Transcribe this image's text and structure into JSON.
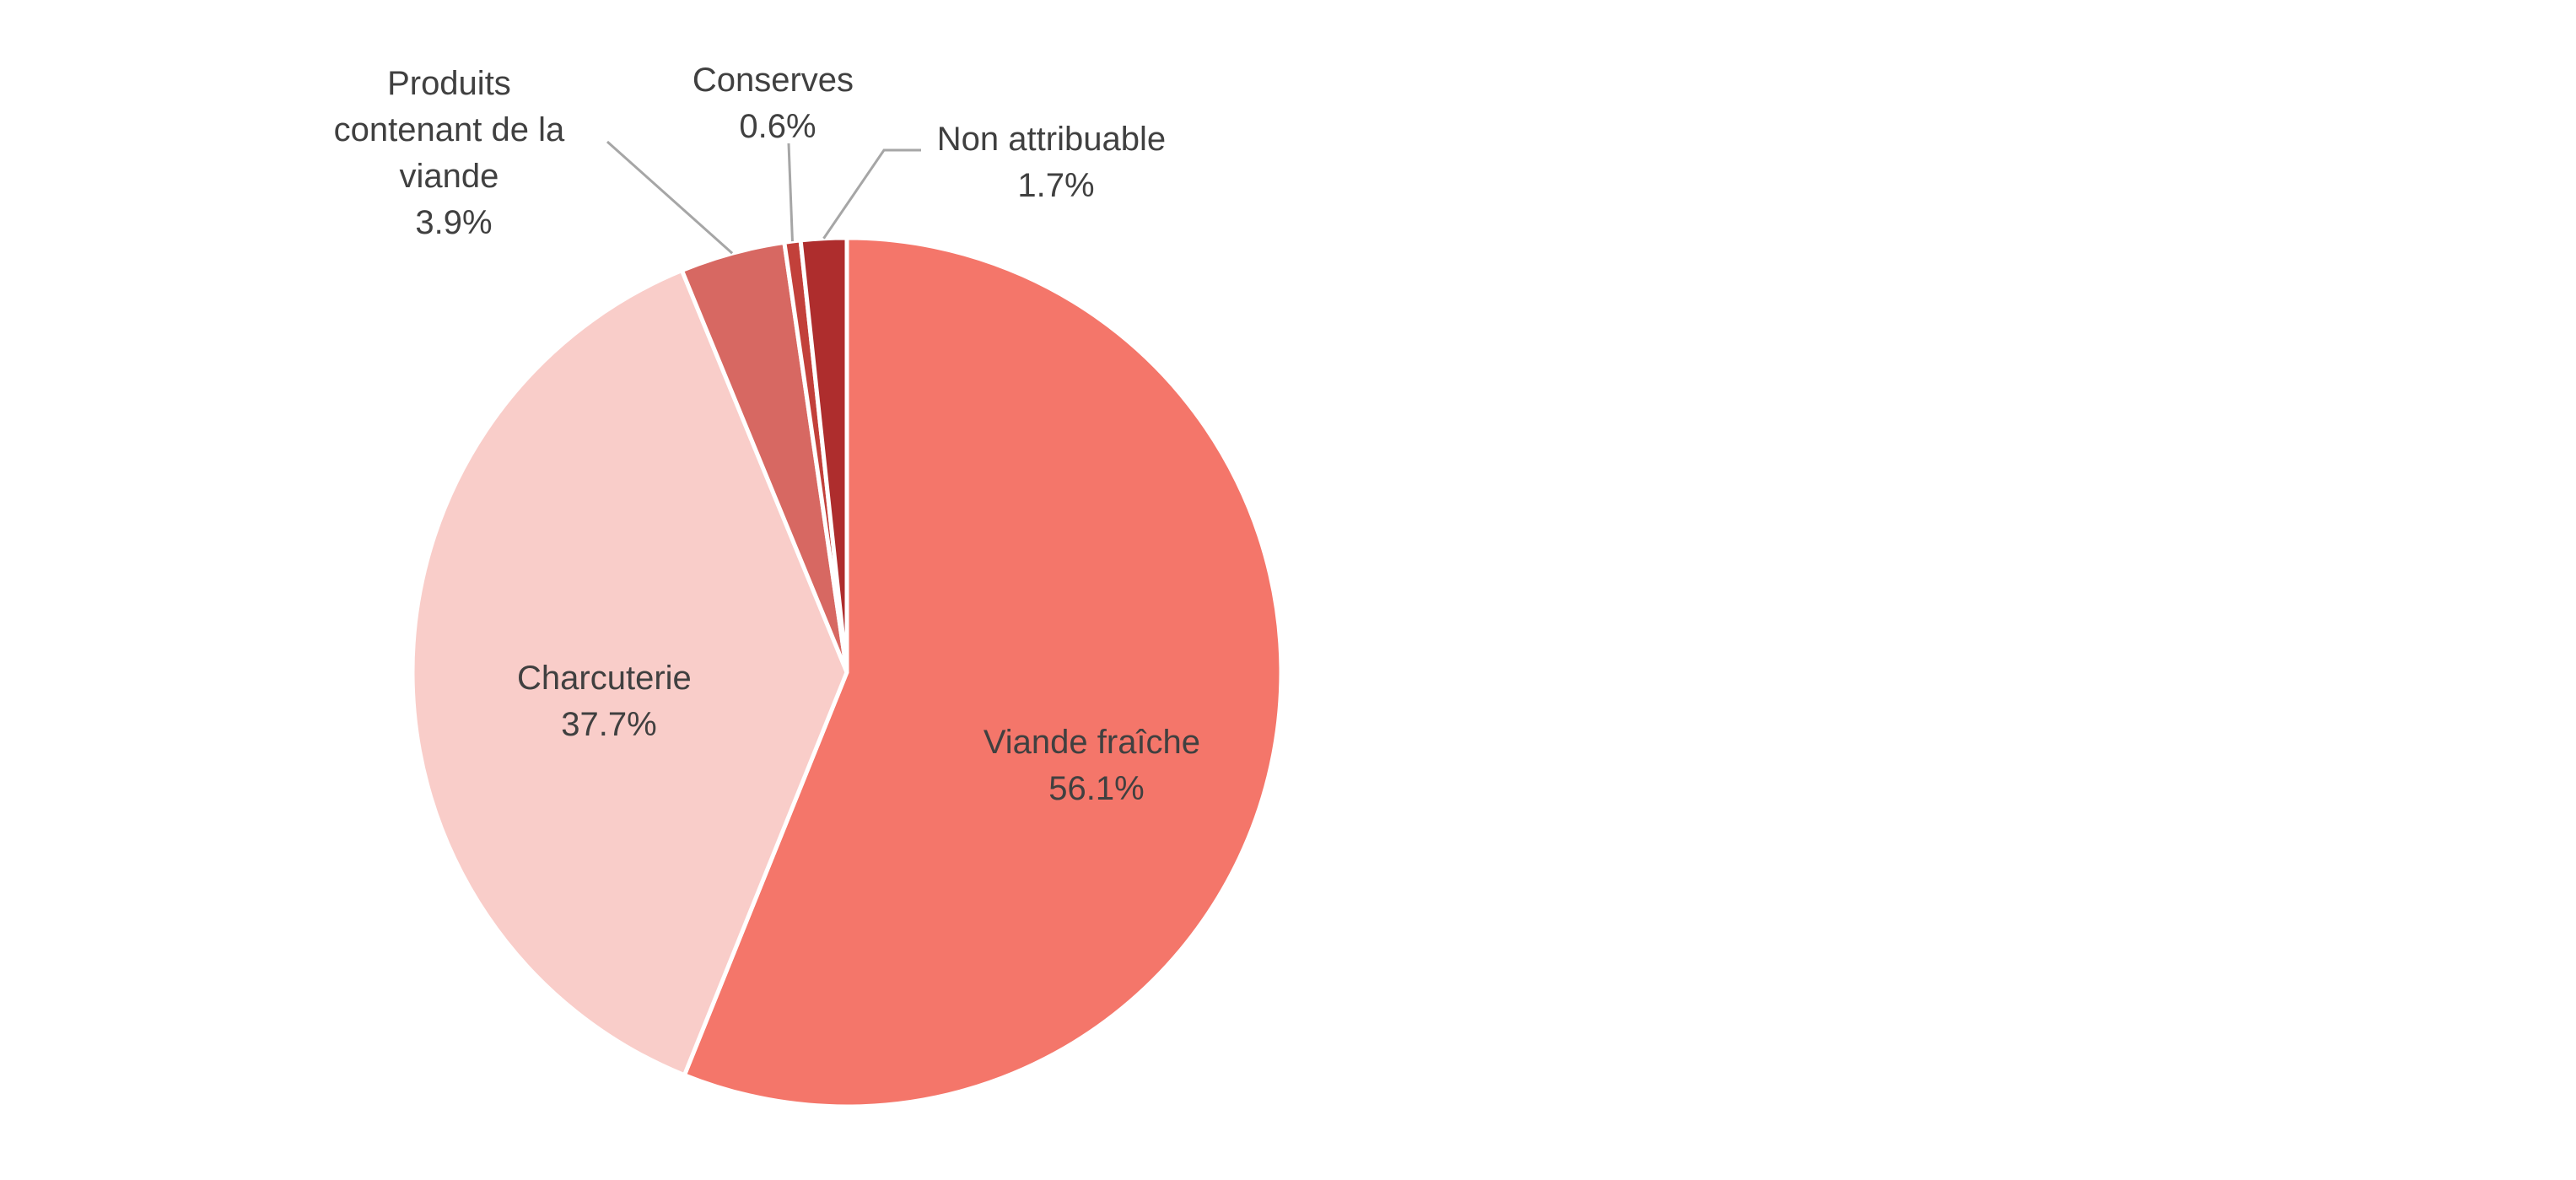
{
  "chart_data": {
    "type": "pie",
    "title": "",
    "legend": "none",
    "slices": [
      {
        "label": "Viande fraîche",
        "value": 56.1,
        "value_label": "56.1%",
        "color": "#f4766a"
      },
      {
        "label": "Charcuterie",
        "value": 37.7,
        "value_label": "37.7%",
        "color": "#f9cdc9"
      },
      {
        "label": "Produits contenant de la viande",
        "value": 3.9,
        "value_label": "3.9%",
        "color": "#d76862"
      },
      {
        "label": "Conserves",
        "value": 0.6,
        "value_label": "0.6%",
        "color": "#c2403a"
      },
      {
        "label": "Non attribuable",
        "value": 1.7,
        "value_label": "1.7%",
        "color": "#ae2d2d"
      }
    ]
  }
}
